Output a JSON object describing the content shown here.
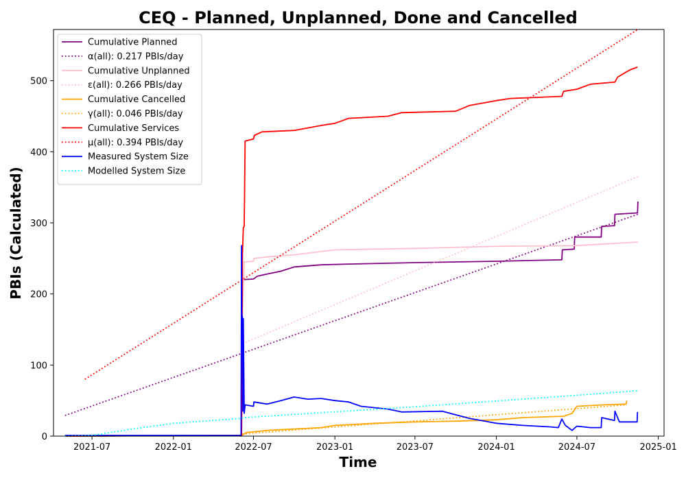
{
  "chart_data": {
    "type": "line",
    "title": "CEQ - Planned, Unplanned, Done  and Cancelled",
    "xlabel": "Time",
    "ylabel": "PBIs (Calculated)",
    "xlim": [
      "2021-04-05",
      "2025-01-14"
    ],
    "ylim": [
      0,
      572
    ],
    "x_ticks": [
      "2021-07",
      "2022-01",
      "2022-07",
      "2023-01",
      "2023-07",
      "2024-01",
      "2024-07",
      "2025-01"
    ],
    "y_ticks": [
      0,
      100,
      200,
      300,
      400,
      500
    ],
    "grid": false,
    "legend_position": "top-left",
    "series": [
      {
        "name": "Cumulative Planned",
        "color": "#800080",
        "style": "solid",
        "points": [
          [
            "2021-05-01",
            0
          ],
          [
            "2022-06-04",
            1
          ],
          [
            "2022-06-06",
            220
          ],
          [
            "2022-07-01",
            221
          ],
          [
            "2022-07-10",
            225
          ],
          [
            "2022-08-01",
            228
          ],
          [
            "2022-09-01",
            232
          ],
          [
            "2022-10-01",
            238
          ],
          [
            "2022-12-01",
            241
          ],
          [
            "2023-02-01",
            242
          ],
          [
            "2023-07-01",
            244
          ],
          [
            "2024-01-01",
            246
          ],
          [
            "2024-05-28",
            248
          ],
          [
            "2024-05-29",
            262
          ],
          [
            "2024-06-25",
            263
          ],
          [
            "2024-06-26",
            280
          ],
          [
            "2024-08-25",
            280
          ],
          [
            "2024-08-26",
            295
          ],
          [
            "2024-09-24",
            296
          ],
          [
            "2024-09-25",
            312
          ],
          [
            "2024-11-15",
            314
          ],
          [
            "2024-11-16",
            330
          ]
        ]
      },
      {
        "name": "α(all): 0.217 PBIs/day",
        "color": "#800080",
        "style": "dotted",
        "points": [
          [
            "2021-05-01",
            29
          ],
          [
            "2024-11-16",
            312
          ]
        ]
      },
      {
        "name": "Cumulative Unplanned",
        "color": "#ffc0cb",
        "style": "solid",
        "points": [
          [
            "2021-05-01",
            0
          ],
          [
            "2022-06-04",
            1
          ],
          [
            "2022-06-06",
            168
          ],
          [
            "2022-06-10",
            245
          ],
          [
            "2022-07-01",
            246
          ],
          [
            "2022-07-02",
            250
          ],
          [
            "2022-08-01",
            252
          ],
          [
            "2022-10-01",
            255
          ],
          [
            "2023-01-01",
            262
          ],
          [
            "2023-07-01",
            264
          ],
          [
            "2024-01-01",
            267
          ],
          [
            "2024-07-01",
            268
          ],
          [
            "2024-11-16",
            273
          ]
        ]
      },
      {
        "name": "ε(all): 0.266 PBIs/day",
        "color": "#ffc0cb",
        "style": "dotted",
        "points": [
          [
            "2022-06-06",
            130
          ],
          [
            "2024-11-16",
            365
          ]
        ]
      },
      {
        "name": "Cumulative Cancelled",
        "color": "#ffa500",
        "style": "solid",
        "points": [
          [
            "2021-05-01",
            0
          ],
          [
            "2022-06-04",
            1
          ],
          [
            "2022-06-15",
            5
          ],
          [
            "2022-08-01",
            8
          ],
          [
            "2022-10-01",
            10
          ],
          [
            "2022-12-01",
            12
          ],
          [
            "2023-01-01",
            15
          ],
          [
            "2023-04-01",
            18
          ],
          [
            "2023-07-01",
            20
          ],
          [
            "2023-10-01",
            21
          ],
          [
            "2024-01-01",
            23
          ],
          [
            "2024-03-01",
            26
          ],
          [
            "2024-06-01",
            28
          ],
          [
            "2024-06-20",
            32
          ],
          [
            "2024-07-01",
            42
          ],
          [
            "2024-09-01",
            44
          ],
          [
            "2024-10-20",
            45
          ],
          [
            "2024-10-22",
            50
          ]
        ]
      },
      {
        "name": "γ(all): 0.046 PBIs/day",
        "color": "#ffa500",
        "style": "dotted",
        "points": [
          [
            "2022-06-06",
            3
          ],
          [
            "2024-10-22",
            44
          ]
        ]
      },
      {
        "name": "Cumulative Services",
        "color": "#ff0000",
        "style": "solid",
        "points": [
          [
            "2021-05-01",
            0
          ],
          [
            "2022-06-04",
            1
          ],
          [
            "2022-06-06",
            255
          ],
          [
            "2022-06-08",
            293
          ],
          [
            "2022-06-10",
            295
          ],
          [
            "2022-06-12",
            415
          ],
          [
            "2022-07-01",
            418
          ],
          [
            "2022-07-03",
            423
          ],
          [
            "2022-07-20",
            428
          ],
          [
            "2022-10-01",
            430
          ],
          [
            "2022-12-01",
            437
          ],
          [
            "2023-01-01",
            440
          ],
          [
            "2023-02-01",
            447
          ],
          [
            "2023-05-01",
            450
          ],
          [
            "2023-06-01",
            455
          ],
          [
            "2023-10-01",
            457
          ],
          [
            "2023-11-01",
            465
          ],
          [
            "2024-01-01",
            472
          ],
          [
            "2024-02-01",
            475
          ],
          [
            "2024-05-28",
            478
          ],
          [
            "2024-06-01",
            485
          ],
          [
            "2024-07-01",
            488
          ],
          [
            "2024-08-01",
            495
          ],
          [
            "2024-09-25",
            498
          ],
          [
            "2024-10-01",
            505
          ],
          [
            "2024-10-20",
            512
          ],
          [
            "2024-11-01",
            516
          ],
          [
            "2024-11-15",
            519
          ]
        ]
      },
      {
        "name": "μ(all): 0.394 PBIs/day",
        "color": "#ff0000",
        "style": "dotted",
        "points": [
          [
            "2021-06-15",
            80
          ],
          [
            "2024-11-16",
            572
          ]
        ]
      },
      {
        "name": "Measured System Size",
        "color": "#0000ff",
        "style": "solid",
        "points": [
          [
            "2021-05-01",
            1
          ],
          [
            "2022-06-03",
            1
          ],
          [
            "2022-06-04",
            268
          ],
          [
            "2022-06-05",
            130
          ],
          [
            "2022-06-06",
            168
          ],
          [
            "2022-06-07",
            35
          ],
          [
            "2022-06-08",
            165
          ],
          [
            "2022-06-10",
            32
          ],
          [
            "2022-06-12",
            44
          ],
          [
            "2022-07-01",
            42
          ],
          [
            "2022-07-02",
            48
          ],
          [
            "2022-08-01",
            45
          ],
          [
            "2022-09-01",
            50
          ],
          [
            "2022-10-01",
            55
          ],
          [
            "2022-11-01",
            52
          ],
          [
            "2022-12-01",
            53
          ],
          [
            "2023-01-01",
            50
          ],
          [
            "2023-02-01",
            48
          ],
          [
            "2023-03-01",
            42
          ],
          [
            "2023-05-01",
            38
          ],
          [
            "2023-06-01",
            34
          ],
          [
            "2023-09-01",
            35
          ],
          [
            "2023-10-01",
            30
          ],
          [
            "2023-11-01",
            25
          ],
          [
            "2024-01-01",
            18
          ],
          [
            "2024-03-01",
            15
          ],
          [
            "2024-05-01",
            13
          ],
          [
            "2024-05-20",
            12
          ],
          [
            "2024-05-28",
            24
          ],
          [
            "2024-06-05",
            15
          ],
          [
            "2024-06-20",
            8
          ],
          [
            "2024-07-01",
            14
          ],
          [
            "2024-08-01",
            12
          ],
          [
            "2024-08-25",
            12
          ],
          [
            "2024-08-26",
            26
          ],
          [
            "2024-09-24",
            22
          ],
          [
            "2024-09-25",
            35
          ],
          [
            "2024-10-05",
            20
          ],
          [
            "2024-11-14",
            20
          ],
          [
            "2024-11-15",
            34
          ]
        ]
      },
      {
        "name": "Modelled System Size",
        "color": "#00ffff",
        "style": "dotted",
        "points": [
          [
            "2021-05-01",
            0
          ],
          [
            "2021-07-01",
            1
          ],
          [
            "2021-10-01",
            10
          ],
          [
            "2022-01-01",
            18
          ],
          [
            "2022-06-04",
            25
          ],
          [
            "2022-06-10",
            26
          ],
          [
            "2022-12-01",
            33
          ],
          [
            "2023-06-01",
            40
          ],
          [
            "2023-12-01",
            48
          ],
          [
            "2024-06-01",
            56
          ],
          [
            "2024-11-16",
            64
          ]
        ]
      }
    ]
  }
}
